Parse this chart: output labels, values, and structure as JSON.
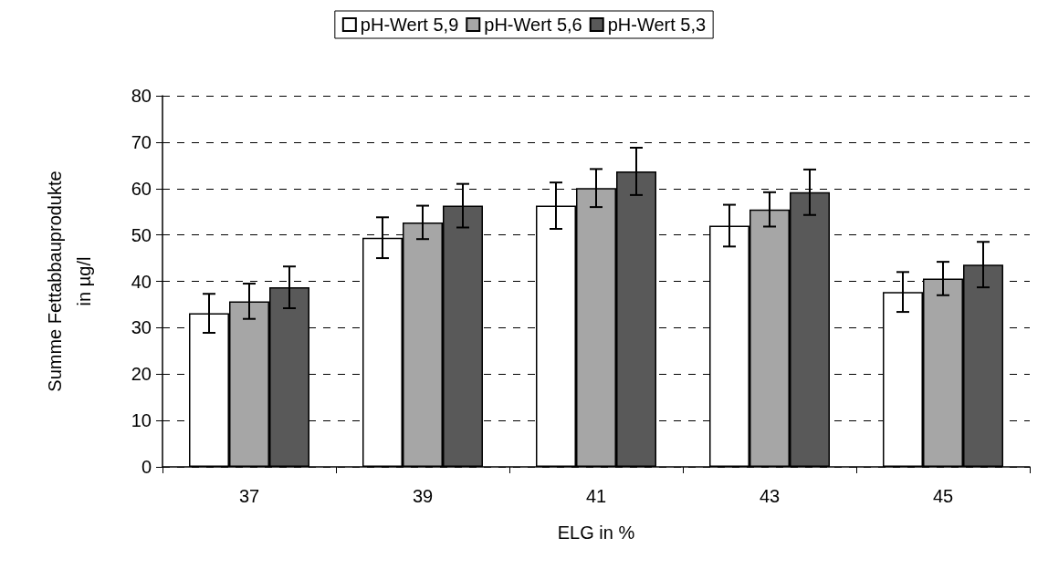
{
  "chart_data": {
    "type": "bar",
    "xlabel": "ELG in %",
    "ylabel": "Summe Fettabbauprodukte\nin µg/l",
    "categories": [
      "37",
      "39",
      "41",
      "43",
      "45"
    ],
    "series": [
      {
        "name": "pH-Wert 5,9",
        "color": "#ffffff",
        "values": [
          33.1,
          49.4,
          56.3,
          52.0,
          37.7
        ],
        "errors": [
          4.2,
          4.4,
          5.0,
          4.5,
          4.3
        ]
      },
      {
        "name": "pH-Wert 5,6",
        "color": "#a6a6a6",
        "values": [
          35.7,
          52.7,
          60.1,
          55.5,
          40.6
        ],
        "errors": [
          3.8,
          3.6,
          4.1,
          3.7,
          3.6
        ]
      },
      {
        "name": "pH-Wert 5,3",
        "color": "#595959",
        "values": [
          38.7,
          56.3,
          63.7,
          59.2,
          43.6
        ],
        "errors": [
          4.5,
          4.7,
          5.1,
          4.9,
          4.9
        ]
      }
    ],
    "ylim": [
      0,
      80
    ],
    "yticks": [
      0,
      10,
      20,
      30,
      40,
      50,
      60,
      70,
      80
    ],
    "grid": "y",
    "legend": "top"
  }
}
